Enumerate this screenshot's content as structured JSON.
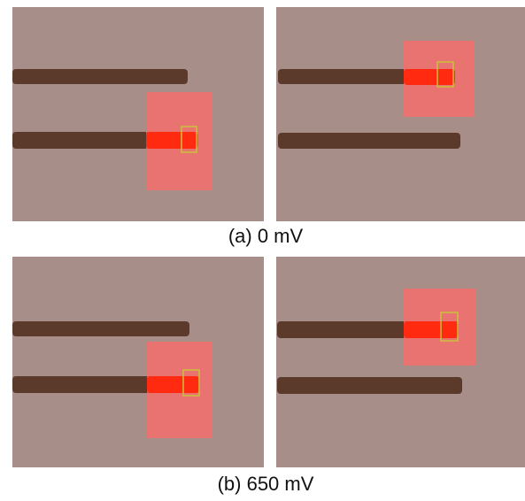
{
  "panels": [
    {
      "caption": "(a) 0 mV"
    },
    {
      "caption": "(b) 650 mV"
    }
  ]
}
